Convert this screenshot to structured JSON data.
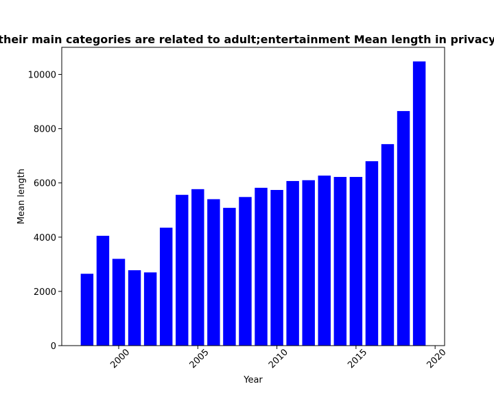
{
  "chart_data": {
    "type": "bar",
    "title": "Websites that their main categories are related to adult;entertainment Mean length in privacy policies by year",
    "xlabel": "Year",
    "ylabel": "Mean length",
    "x": [
      1998,
      1999,
      2000,
      2001,
      2002,
      2003,
      2004,
      2005,
      2006,
      2007,
      2008,
      2009,
      2010,
      2011,
      2012,
      2013,
      2014,
      2015,
      2016,
      2017,
      2018,
      2019
    ],
    "values": [
      2650,
      4050,
      3200,
      2780,
      2700,
      4350,
      5560,
      5770,
      5400,
      5080,
      5480,
      5820,
      5740,
      6070,
      6100,
      6270,
      6220,
      6220,
      6800,
      7430,
      8650,
      10480
    ],
    "xlim": [
      1996.4,
      2020.6
    ],
    "ylim": [
      0,
      11000
    ],
    "xticks": [
      2000,
      2005,
      2010,
      2015,
      2020
    ],
    "yticks": [
      0,
      2000,
      4000,
      6000,
      8000,
      10000
    ],
    "bar_color": "#0000ff",
    "grid": false,
    "legend": "none"
  }
}
